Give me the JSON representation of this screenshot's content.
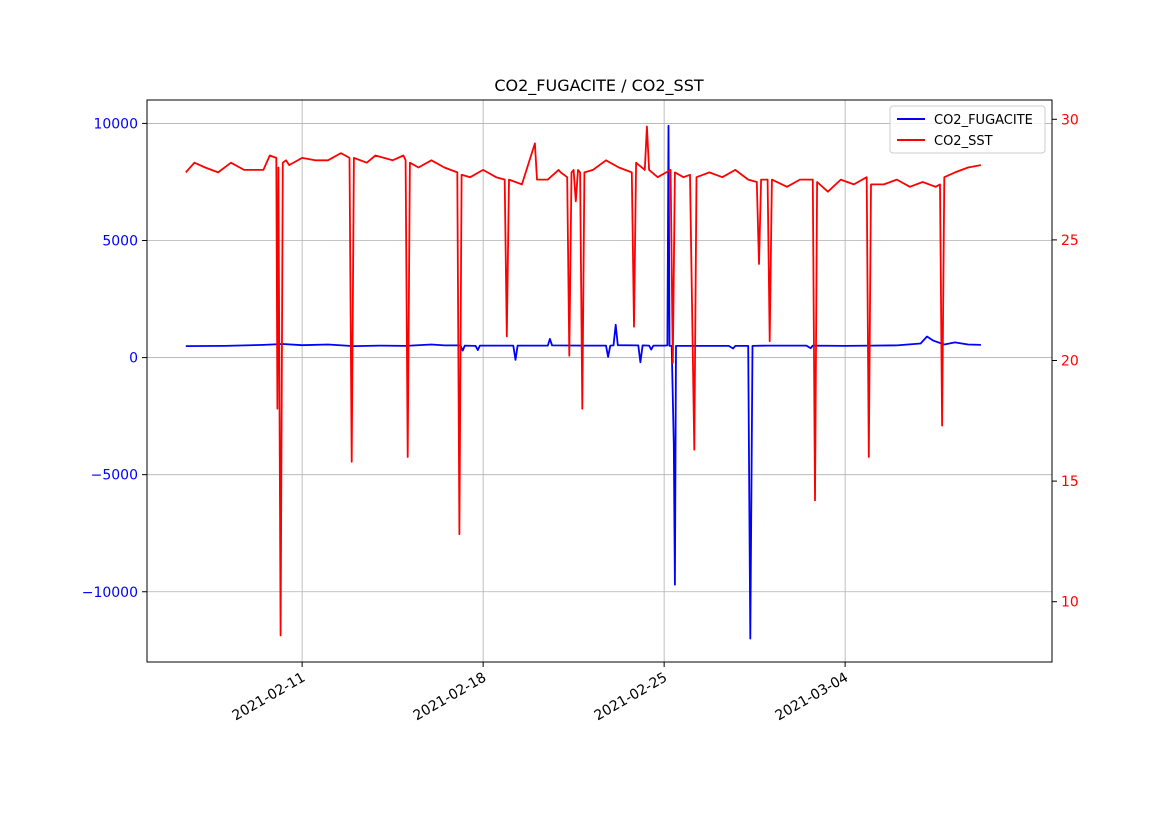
{
  "chart_data": {
    "type": "line",
    "title": "CO2_FUGACITE / CO2_SST",
    "xlabel": "",
    "x_axis": {
      "type": "date",
      "range": [
        "2021-02-05",
        "2021-03-12"
      ],
      "ticks": [
        "2021-02-11",
        "2021-02-18",
        "2021-02-25",
        "2021-03-04"
      ]
    },
    "y_left": {
      "range": [
        -13000,
        11000
      ],
      "ticks": [
        -10000,
        -5000,
        0,
        5000,
        10000
      ],
      "tick_labels": [
        "−10000",
        "−5000",
        "0",
        "5000",
        "10000"
      ],
      "color": "#0000ff"
    },
    "y_right": {
      "range": [
        7.5,
        30.8
      ],
      "ticks": [
        10,
        15,
        20,
        25,
        30
      ],
      "tick_labels": [
        "10",
        "15",
        "20",
        "25",
        "30"
      ],
      "color": "#ff0000"
    },
    "grid": true,
    "legend": {
      "placement": "top-right",
      "entries": [
        "CO2_FUGACITE",
        "CO2_SST"
      ]
    },
    "series": [
      {
        "name": "CO2_FUGACITE",
        "axis": "left",
        "color": "#0000ff",
        "points": [
          [
            "2021-02-06 12:00",
            490
          ],
          [
            "2021-02-08 00:00",
            500
          ],
          [
            "2021-02-09 12:00",
            540
          ],
          [
            "2021-02-10 06:00",
            580
          ],
          [
            "2021-02-11 00:00",
            530
          ],
          [
            "2021-02-12 00:00",
            560
          ],
          [
            "2021-02-13 00:00",
            490
          ],
          [
            "2021-02-14 00:00",
            510
          ],
          [
            "2021-02-15 00:00",
            500
          ],
          [
            "2021-02-16 00:00",
            560
          ],
          [
            "2021-02-16 12:00",
            520
          ],
          [
            "2021-02-17 03:00",
            520
          ],
          [
            "2021-02-17 05:00",
            300
          ],
          [
            "2021-02-17 07:00",
            510
          ],
          [
            "2021-02-17 17:00",
            500
          ],
          [
            "2021-02-17 19:00",
            320
          ],
          [
            "2021-02-17 21:00",
            510
          ],
          [
            "2021-02-18 12:00",
            510
          ],
          [
            "2021-02-19 04:00",
            510
          ],
          [
            "2021-02-19 06:00",
            -100
          ],
          [
            "2021-02-19 08:00",
            510
          ],
          [
            "2021-02-20 12:00",
            510
          ],
          [
            "2021-02-20 14:00",
            800
          ],
          [
            "2021-02-20 16:00",
            520
          ],
          [
            "2021-02-22 00:00",
            510
          ],
          [
            "2021-02-22 18:00",
            510
          ],
          [
            "2021-02-22 20:00",
            30
          ],
          [
            "2021-02-22 22:00",
            510
          ],
          [
            "2021-02-23 01:00",
            520
          ],
          [
            "2021-02-23 03:00",
            1400
          ],
          [
            "2021-02-23 05:00",
            530
          ],
          [
            "2021-02-24 00:00",
            520
          ],
          [
            "2021-02-24 02:00",
            -200
          ],
          [
            "2021-02-24 04:00",
            520
          ],
          [
            "2021-02-24 10:00",
            510
          ],
          [
            "2021-02-24 12:00",
            340
          ],
          [
            "2021-02-24 14:00",
            510
          ],
          [
            "2021-02-25 00:00",
            510
          ],
          [
            "2021-02-25 03:00",
            520
          ],
          [
            "2021-02-25 04:00",
            9900
          ],
          [
            "2021-02-25 05:00",
            500
          ],
          [
            "2021-02-25 07:00",
            500
          ],
          [
            "2021-02-25 09:00",
            -3700
          ],
          [
            "2021-02-25 10:00",
            -9700
          ],
          [
            "2021-02-25 11:00",
            500
          ],
          [
            "2021-02-26 12:00",
            500
          ],
          [
            "2021-02-27 12:00",
            500
          ],
          [
            "2021-02-27 16:00",
            390
          ],
          [
            "2021-02-27 18:00",
            500
          ],
          [
            "2021-02-28 06:00",
            500
          ],
          [
            "2021-02-28 08:00",
            -12000
          ],
          [
            "2021-02-28 10:00",
            500
          ],
          [
            "2021-03-01 00:00",
            510
          ],
          [
            "2021-03-02 12:00",
            510
          ],
          [
            "2021-03-02 16:00",
            400
          ],
          [
            "2021-03-02 18:00",
            510
          ],
          [
            "2021-03-04 00:00",
            500
          ],
          [
            "2021-03-05 00:00",
            510
          ],
          [
            "2021-03-06 00:00",
            520
          ],
          [
            "2021-03-06 22:00",
            600
          ],
          [
            "2021-03-07 04:00",
            900
          ],
          [
            "2021-03-07 10:00",
            720
          ],
          [
            "2021-03-07 20:00",
            560
          ],
          [
            "2021-03-08 06:00",
            650
          ],
          [
            "2021-03-08 18:00",
            560
          ],
          [
            "2021-03-09 06:00",
            540
          ]
        ]
      },
      {
        "name": "CO2_SST",
        "axis": "right",
        "color": "#ff0000",
        "points": [
          [
            "2021-02-06 12:00",
            27.8
          ],
          [
            "2021-02-06 20:00",
            28.2
          ],
          [
            "2021-02-07 06:00",
            28.0
          ],
          [
            "2021-02-07 18:00",
            27.8
          ],
          [
            "2021-02-08 06:00",
            28.2
          ],
          [
            "2021-02-08 18:00",
            27.9
          ],
          [
            "2021-02-09 12:00",
            27.9
          ],
          [
            "2021-02-09 18:00",
            28.5
          ],
          [
            "2021-02-10 00:00",
            28.4
          ],
          [
            "2021-02-10 01:00",
            18.0
          ],
          [
            "2021-02-10 02:00",
            28.0
          ],
          [
            "2021-02-10 04:00",
            8.6
          ],
          [
            "2021-02-10 06:00",
            28.2
          ],
          [
            "2021-02-10 09:00",
            28.3
          ],
          [
            "2021-02-10 12:00",
            28.1
          ],
          [
            "2021-02-11 00:00",
            28.4
          ],
          [
            "2021-02-11 12:00",
            28.3
          ],
          [
            "2021-02-12 00:00",
            28.3
          ],
          [
            "2021-02-12 12:00",
            28.6
          ],
          [
            "2021-02-12 20:00",
            28.4
          ],
          [
            "2021-02-12 22:00",
            15.8
          ],
          [
            "2021-02-13 00:00",
            28.4
          ],
          [
            "2021-02-13 12:00",
            28.2
          ],
          [
            "2021-02-13 20:00",
            28.5
          ],
          [
            "2021-02-14 12:00",
            28.3
          ],
          [
            "2021-02-14 22:00",
            28.5
          ],
          [
            "2021-02-15 00:00",
            28.3
          ],
          [
            "2021-02-15 02:00",
            16.0
          ],
          [
            "2021-02-15 04:00",
            28.2
          ],
          [
            "2021-02-15 12:00",
            28.0
          ],
          [
            "2021-02-16 00:00",
            28.3
          ],
          [
            "2021-02-16 12:00",
            28.0
          ],
          [
            "2021-02-17 00:00",
            27.8
          ],
          [
            "2021-02-17 02:00",
            12.8
          ],
          [
            "2021-02-17 04:00",
            27.7
          ],
          [
            "2021-02-17 12:00",
            27.6
          ],
          [
            "2021-02-18 00:00",
            27.9
          ],
          [
            "2021-02-18 12:00",
            27.6
          ],
          [
            "2021-02-18 20:00",
            27.5
          ],
          [
            "2021-02-18 22:00",
            21.0
          ],
          [
            "2021-02-19 00:00",
            27.5
          ],
          [
            "2021-02-19 12:00",
            27.3
          ],
          [
            "2021-02-20 00:00",
            29.0
          ],
          [
            "2021-02-20 02:00",
            27.5
          ],
          [
            "2021-02-20 12:00",
            27.5
          ],
          [
            "2021-02-20 22:00",
            27.9
          ],
          [
            "2021-02-21 00:00",
            27.8
          ],
          [
            "2021-02-21 06:00",
            27.6
          ],
          [
            "2021-02-21 08:00",
            20.2
          ],
          [
            "2021-02-21 10:00",
            27.8
          ],
          [
            "2021-02-21 12:00",
            27.9
          ],
          [
            "2021-02-21 14:00",
            26.6
          ],
          [
            "2021-02-21 16:00",
            27.9
          ],
          [
            "2021-02-21 18:00",
            27.8
          ],
          [
            "2021-02-21 20:00",
            18.0
          ],
          [
            "2021-02-21 22:00",
            27.8
          ],
          [
            "2021-02-22 06:00",
            27.9
          ],
          [
            "2021-02-22 18:00",
            28.3
          ],
          [
            "2021-02-23 06:00",
            28.0
          ],
          [
            "2021-02-23 18:00",
            27.8
          ],
          [
            "2021-02-23 20:00",
            21.4
          ],
          [
            "2021-02-23 22:00",
            28.2
          ],
          [
            "2021-02-24 06:00",
            27.9
          ],
          [
            "2021-02-24 08:00",
            29.7
          ],
          [
            "2021-02-24 10:00",
            27.9
          ],
          [
            "2021-02-24 18:00",
            27.6
          ],
          [
            "2021-02-25 06:00",
            27.9
          ],
          [
            "2021-02-25 08:00",
            19.9
          ],
          [
            "2021-02-25 10:00",
            27.8
          ],
          [
            "2021-02-25 18:00",
            27.6
          ],
          [
            "2021-02-26 00:00",
            27.7
          ],
          [
            "2021-02-26 04:00",
            16.3
          ],
          [
            "2021-02-26 06:00",
            27.6
          ],
          [
            "2021-02-26 18:00",
            27.8
          ],
          [
            "2021-02-27 06:00",
            27.6
          ],
          [
            "2021-02-27 18:00",
            27.9
          ],
          [
            "2021-02-28 06:00",
            27.5
          ],
          [
            "2021-02-28 14:00",
            27.4
          ],
          [
            "2021-02-28 16:00",
            24.0
          ],
          [
            "2021-02-28 18:00",
            27.5
          ],
          [
            "2021-03-01 00:00",
            27.5
          ],
          [
            "2021-03-01 02:00",
            20.8
          ],
          [
            "2021-03-01 04:00",
            27.5
          ],
          [
            "2021-03-01 18:00",
            27.2
          ],
          [
            "2021-03-02 06:00",
            27.5
          ],
          [
            "2021-03-02 18:00",
            27.5
          ],
          [
            "2021-03-02 20:00",
            14.2
          ],
          [
            "2021-03-02 22:00",
            27.4
          ],
          [
            "2021-03-03 08:00",
            27.0
          ],
          [
            "2021-03-03 20:00",
            27.5
          ],
          [
            "2021-03-04 08:00",
            27.3
          ],
          [
            "2021-03-04 20:00",
            27.6
          ],
          [
            "2021-03-04 22:00",
            16.0
          ],
          [
            "2021-03-05 00:00",
            27.3
          ],
          [
            "2021-03-05 12:00",
            27.3
          ],
          [
            "2021-03-06 00:00",
            27.5
          ],
          [
            "2021-03-06 12:00",
            27.2
          ],
          [
            "2021-03-07 00:00",
            27.4
          ],
          [
            "2021-03-07 12:00",
            27.2
          ],
          [
            "2021-03-07 16:00",
            27.3
          ],
          [
            "2021-03-07 18:00",
            17.3
          ],
          [
            "2021-03-07 20:00",
            27.6
          ],
          [
            "2021-03-08 06:00",
            27.8
          ],
          [
            "2021-03-08 18:00",
            28.0
          ],
          [
            "2021-03-09 06:00",
            28.1
          ]
        ]
      }
    ]
  }
}
